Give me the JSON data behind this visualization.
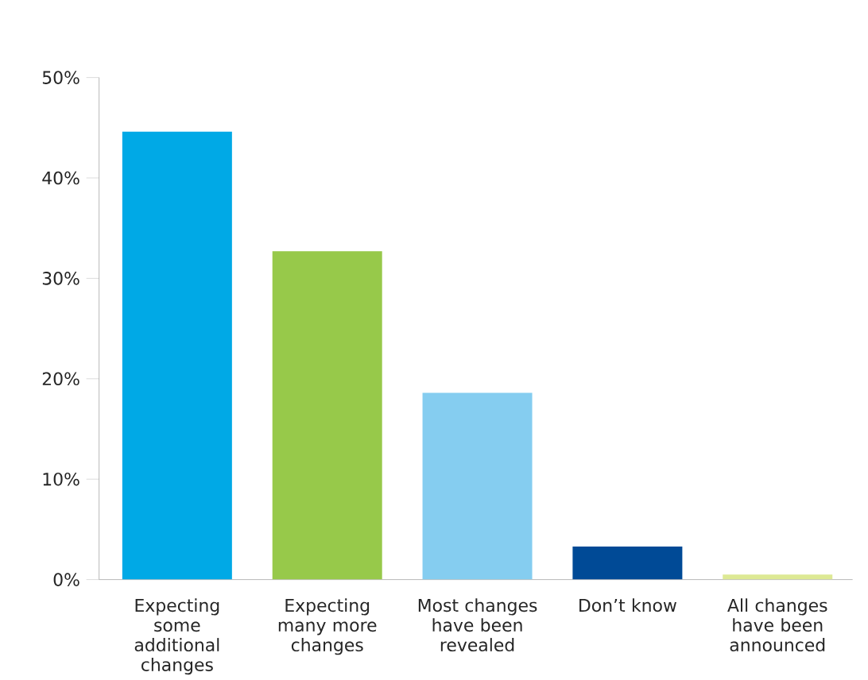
{
  "chart_data": {
    "type": "bar",
    "categories": [
      "Expecting some additional changes",
      "Expecting many more changes",
      "Most changes have been revealed",
      "Don’t know",
      "All changes have been announced"
    ],
    "values": [
      44.6,
      32.7,
      18.6,
      3.3,
      0.5
    ],
    "colors": [
      "#00a9e6",
      "#97c94a",
      "#85cdf0",
      "#004a96",
      "#dde994"
    ],
    "ylim": [
      0,
      50
    ],
    "yticks": [
      {
        "value": 0,
        "label": "0%"
      },
      {
        "value": 10,
        "label": "10%"
      },
      {
        "value": 20,
        "label": "20%"
      },
      {
        "value": 30,
        "label": "30%"
      },
      {
        "value": 40,
        "label": "40%"
      },
      {
        "value": 50,
        "label": "50%"
      }
    ],
    "grid": false
  }
}
